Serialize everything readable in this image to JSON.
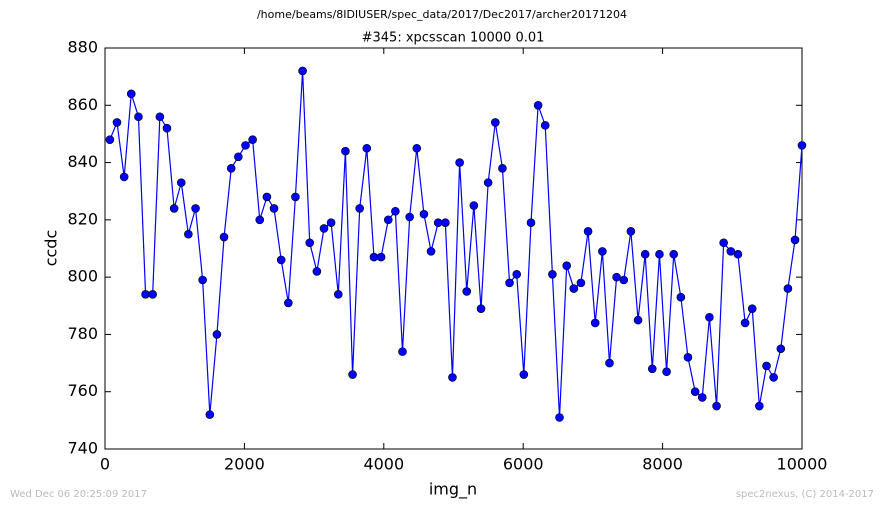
{
  "chart_data": {
    "type": "line",
    "suptitle": "/home/beams/8IDIUSER/spec_data/2017/Dec2017/archer20171204",
    "title": "#345: xpcsscan 10000 0.01",
    "xlabel": "img_n",
    "ylabel": "ccdc",
    "footer_left": "Wed Dec 06 20:25:09 2017",
    "footer_right": "spec2nexus, (C) 2014-2017",
    "color": "#0000ff",
    "x": [
      70,
      172,
      275,
      377,
      480,
      582,
      684,
      787,
      889,
      992,
      1094,
      1196,
      1299,
      1401,
      1504,
      1606,
      1708,
      1811,
      1913,
      2016,
      2118,
      2220,
      2323,
      2425,
      2528,
      2630,
      2732,
      2835,
      2937,
      3040,
      3142,
      3244,
      3347,
      3449,
      3552,
      3654,
      3756,
      3859,
      3961,
      4064,
      4166,
      4268,
      4371,
      4473,
      4576,
      4678,
      4780,
      4883,
      4985,
      5088,
      5190,
      5292,
      5395,
      5497,
      5600,
      5702,
      5804,
      5907,
      6009,
      6112,
      6214,
      6316,
      6419,
      6521,
      6624,
      6726,
      6828,
      6931,
      7033,
      7136,
      7238,
      7340,
      7443,
      7545,
      7648,
      7750,
      7852,
      7955,
      8057,
      8160,
      8262,
      8364,
      8467,
      8569,
      8672,
      8774,
      8876,
      8979,
      9081,
      9184,
      9286,
      9388,
      9491,
      9593,
      9696,
      9798,
      9900,
      10000
    ],
    "values": [
      848,
      854,
      835,
      864,
      856,
      794,
      794,
      856,
      852,
      824,
      833,
      815,
      824,
      799,
      752,
      780,
      814,
      838,
      842,
      846,
      848,
      820,
      828,
      824,
      806,
      791,
      828,
      872,
      812,
      802,
      817,
      819,
      794,
      844,
      766,
      824,
      845,
      807,
      807,
      820,
      823,
      774,
      821,
      845,
      822,
      809,
      819,
      819,
      765,
      840,
      795,
      825,
      789,
      833,
      854,
      838,
      798,
      801,
      766,
      819,
      860,
      853,
      801,
      751,
      804,
      796,
      798,
      816,
      784,
      809,
      770,
      800,
      799,
      816,
      785,
      808,
      768,
      808,
      767,
      808,
      793,
      772,
      760,
      758,
      786,
      755,
      812,
      809,
      808,
      784,
      789,
      755,
      769,
      765,
      775,
      796,
      813,
      846
    ],
    "xlim": [
      0,
      10000
    ],
    "xticks": [
      0,
      2000,
      4000,
      6000,
      8000,
      10000
    ],
    "ylim": [
      740,
      880
    ],
    "yticks": [
      740,
      760,
      780,
      800,
      820,
      840,
      860,
      880
    ]
  }
}
